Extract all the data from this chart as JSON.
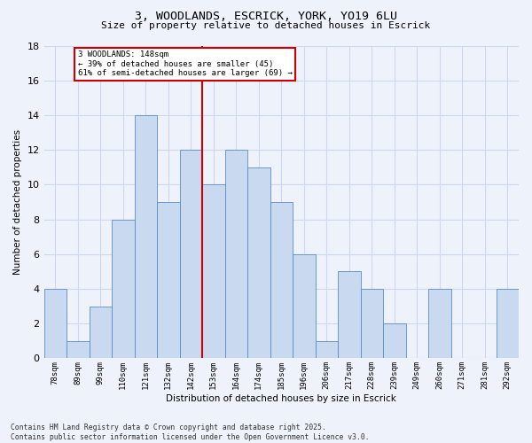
{
  "title": "3, WOODLANDS, ESCRICK, YORK, YO19 6LU",
  "subtitle": "Size of property relative to detached houses in Escrick",
  "xlabel": "Distribution of detached houses by size in Escrick",
  "ylabel": "Number of detached properties",
  "bar_labels": [
    "78sqm",
    "89sqm",
    "99sqm",
    "110sqm",
    "121sqm",
    "132sqm",
    "142sqm",
    "153sqm",
    "164sqm",
    "174sqm",
    "185sqm",
    "196sqm",
    "206sqm",
    "217sqm",
    "228sqm",
    "239sqm",
    "249sqm",
    "260sqm",
    "271sqm",
    "281sqm",
    "292sqm"
  ],
  "bar_values": [
    4,
    1,
    3,
    8,
    14,
    9,
    12,
    10,
    12,
    11,
    9,
    6,
    1,
    5,
    4,
    2,
    0,
    4,
    0,
    0,
    4
  ],
  "bar_color": "#c9d9f0",
  "bar_edge_color": "#5b8cc8",
  "background_color": "#eef2fb",
  "grid_color": "#d0d8ee",
  "vline_x_idx": 7,
  "vline_color": "#cc0000",
  "annotation_text": "3 WOODLANDS: 148sqm\n← 39% of detached houses are smaller (45)\n61% of semi-detached houses are larger (69) →",
  "annotation_box_color": "#ffffff",
  "annotation_box_edge_color": "#cc0000",
  "ylim": [
    0,
    18
  ],
  "yticks": [
    0,
    2,
    4,
    6,
    8,
    10,
    12,
    14,
    16,
    18
  ],
  "footer": "Contains HM Land Registry data © Crown copyright and database right 2025.\nContains public sector information licensed under the Open Government Licence v3.0."
}
